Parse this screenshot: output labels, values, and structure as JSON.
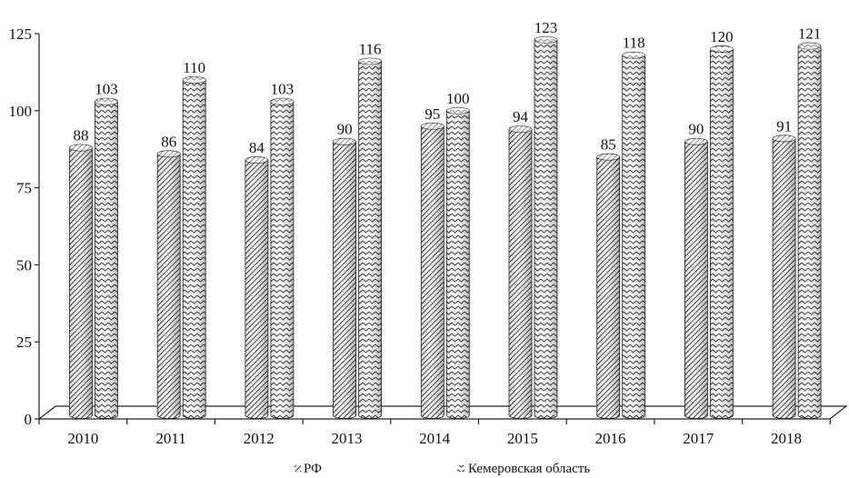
{
  "chart_data": {
    "type": "bar",
    "categories": [
      "2010",
      "2011",
      "2012",
      "2013",
      "2014",
      "2015",
      "2016",
      "2017",
      "2018"
    ],
    "series": [
      {
        "name": "РФ",
        "values": [
          88,
          86,
          84,
          90,
          95,
          94,
          85,
          90,
          91
        ],
        "pattern": "dense-diagonal",
        "color": "#333333"
      },
      {
        "name": "Кемеровская область",
        "values": [
          103,
          110,
          103,
          116,
          100,
          123,
          118,
          120,
          121
        ],
        "pattern": "zigzag",
        "color": "#333333"
      }
    ],
    "value_labels": {
      "РФ": [
        "88",
        "86",
        "84",
        "90",
        "95",
        "94",
        "85",
        "90",
        "91"
      ],
      "Кемеровская область": [
        "103",
        "110",
        "103",
        "116",
        "100",
        "123",
        "118",
        "120",
        "121"
      ]
    },
    "yticks": [
      "0",
      "25",
      "50",
      "75",
      "100",
      "125"
    ],
    "ylim": [
      0,
      125
    ],
    "title": "",
    "xlabel": "",
    "ylabel": "",
    "grid": false,
    "legend_position": "bottom",
    "style": "3d-cylinder"
  }
}
